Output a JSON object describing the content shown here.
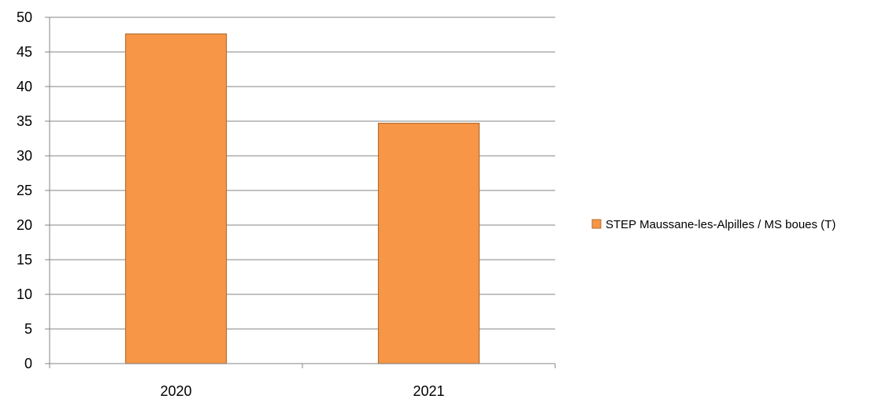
{
  "chart_data": {
    "type": "bar",
    "categories": [
      "2020",
      "2021"
    ],
    "series": [
      {
        "name": "STEP Maussane-les-Alpilles / MS boues (T)",
        "values": [
          47.6,
          34.7
        ],
        "color": "#F79646",
        "stroke": "#B66D31"
      }
    ],
    "ylim": [
      0,
      50
    ],
    "ytick_step": 5,
    "yticks": [
      "0",
      "5",
      "10",
      "15",
      "20",
      "25",
      "30",
      "35",
      "40",
      "45",
      "50"
    ],
    "grid": true,
    "grid_color": "#868686",
    "axis_color": "#868686",
    "legend_position": "right"
  }
}
